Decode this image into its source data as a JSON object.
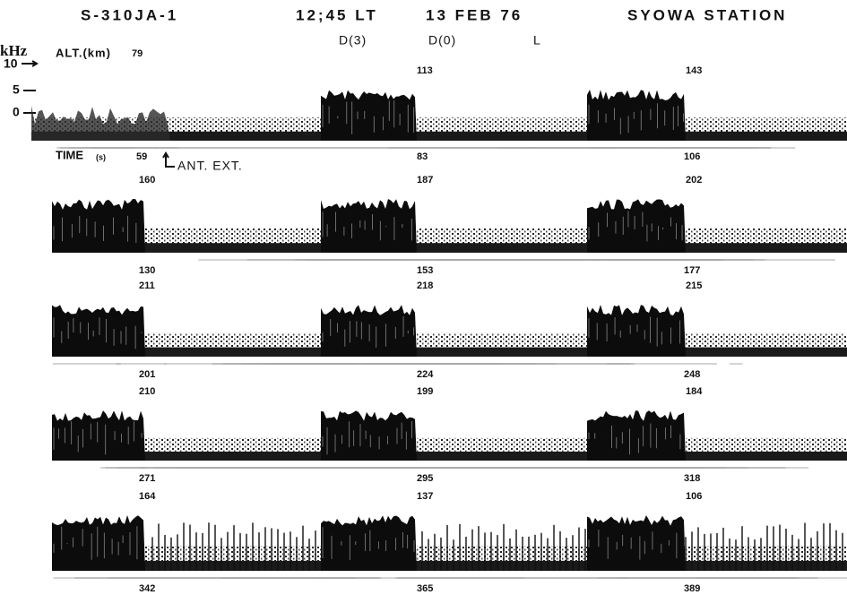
{
  "header": {
    "rocket": "S-310JA-1",
    "time": "12;45 LT",
    "date": "13 FEB 76",
    "station": "SYOWA STATION"
  },
  "modes": [
    "D(3)",
    "D(0)",
    "L"
  ],
  "axis": {
    "unit": "kHz",
    "alt_label": "ALT.(km)",
    "ticks": [
      "10",
      "5",
      "0"
    ],
    "time_label": "TIME",
    "time_unit": "(s)"
  },
  "annotation": "ANT. EXT.",
  "strips": [
    {
      "altitudes": [
        "79",
        "113",
        "143"
      ],
      "times": [
        "59",
        "83",
        "106"
      ]
    },
    {
      "altitudes": [
        "160",
        "187",
        "202"
      ],
      "times": [
        "130",
        "153",
        "177"
      ]
    },
    {
      "altitudes": [
        "211",
        "218",
        "215"
      ],
      "times": [
        "201",
        "224",
        "248"
      ]
    },
    {
      "altitudes": [
        "210",
        "199",
        "184"
      ],
      "times": [
        "271",
        "295",
        "318"
      ]
    },
    {
      "altitudes": [
        "164",
        "137",
        "106"
      ],
      "times": [
        "342",
        "365",
        "389"
      ]
    }
  ]
}
